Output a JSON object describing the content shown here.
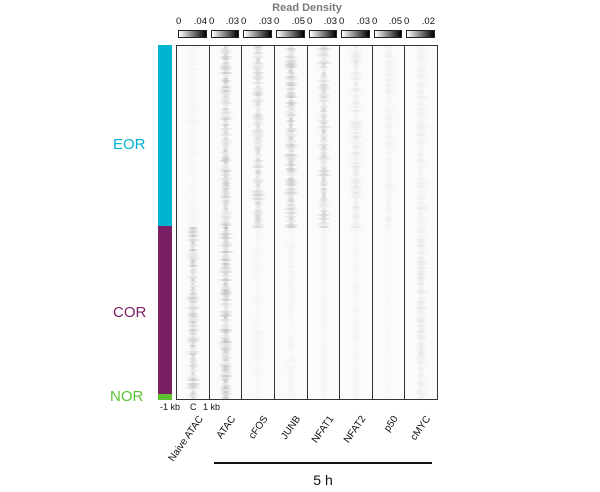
{
  "chart_data": {
    "type": "heatmap",
    "title": "Read Density",
    "xlabel": "",
    "ylabel": "",
    "x_axis_ticks": [
      "-1 kb",
      "C",
      "1 kb"
    ],
    "columns": [
      {
        "name": "Naive ATAC",
        "scale_min": "0",
        "scale_max": ".04"
      },
      {
        "name": "ATAC",
        "scale_min": "0",
        "scale_max": ".03"
      },
      {
        "name": "cFOS",
        "scale_min": "0",
        "scale_max": ".03"
      },
      {
        "name": "JUNB",
        "scale_min": "0",
        "scale_max": ".05"
      },
      {
        "name": "NFAT1",
        "scale_min": "0",
        "scale_max": ".03"
      },
      {
        "name": "NFAT2",
        "scale_min": "0",
        "scale_max": ".03"
      },
      {
        "name": "p50",
        "scale_min": "0",
        "scale_max": ".05"
      },
      {
        "name": "cMYC",
        "scale_min": "0",
        "scale_max": ".02"
      }
    ],
    "row_clusters": [
      {
        "name": "EOR",
        "color": "#00b4d0",
        "fraction": 0.51
      },
      {
        "name": "COR",
        "color": "#7a1f63",
        "fraction": 0.47
      },
      {
        "name": "NOR",
        "color": "#5cc232",
        "fraction": 0.02
      }
    ],
    "group_annotation": {
      "label": "5 h",
      "columns": [
        "ATAC",
        "cFOS",
        "JUNB",
        "NFAT1",
        "NFAT2",
        "p50",
        "cMYC"
      ]
    },
    "intensity_summary": {
      "EOR": {
        "Naive ATAC": 0.05,
        "ATAC": 0.35,
        "cFOS": 0.3,
        "JUNB": 0.35,
        "NFAT1": 0.3,
        "NFAT2": 0.15,
        "p50": 0.08,
        "cMYC": 0.1
      },
      "COR": {
        "Naive ATAC": 0.35,
        "ATAC": 0.4,
        "cFOS": 0.05,
        "JUNB": 0.05,
        "NFAT1": 0.05,
        "NFAT2": 0.05,
        "p50": 0.03,
        "cMYC": 0.15
      },
      "NOR": {
        "Naive ATAC": 0.3,
        "ATAC": 0.35,
        "cFOS": 0.05,
        "JUNB": 0.05,
        "NFAT1": 0.05,
        "NFAT2": 0.05,
        "p50": 0.03,
        "cMYC": 0.1
      }
    },
    "legend_position": "top"
  },
  "labels": {
    "title": "Read Density",
    "axis_left": "-1 kb",
    "axis_center": "C",
    "axis_right": "1 kb",
    "time": "5 h",
    "clusters": [
      "EOR",
      "COR",
      "NOR"
    ],
    "columns": [
      "Naive ATAC",
      "ATAC",
      "cFOS",
      "JUNB",
      "NFAT1",
      "NFAT2",
      "p50",
      "cMYC"
    ],
    "scale_min": [
      "0",
      "0",
      "0",
      "0",
      "0",
      "0",
      "0",
      "0"
    ],
    "scale_max": [
      ".04",
      ".03",
      ".03",
      ".05",
      ".03",
      ".03",
      ".05",
      ".02"
    ]
  }
}
